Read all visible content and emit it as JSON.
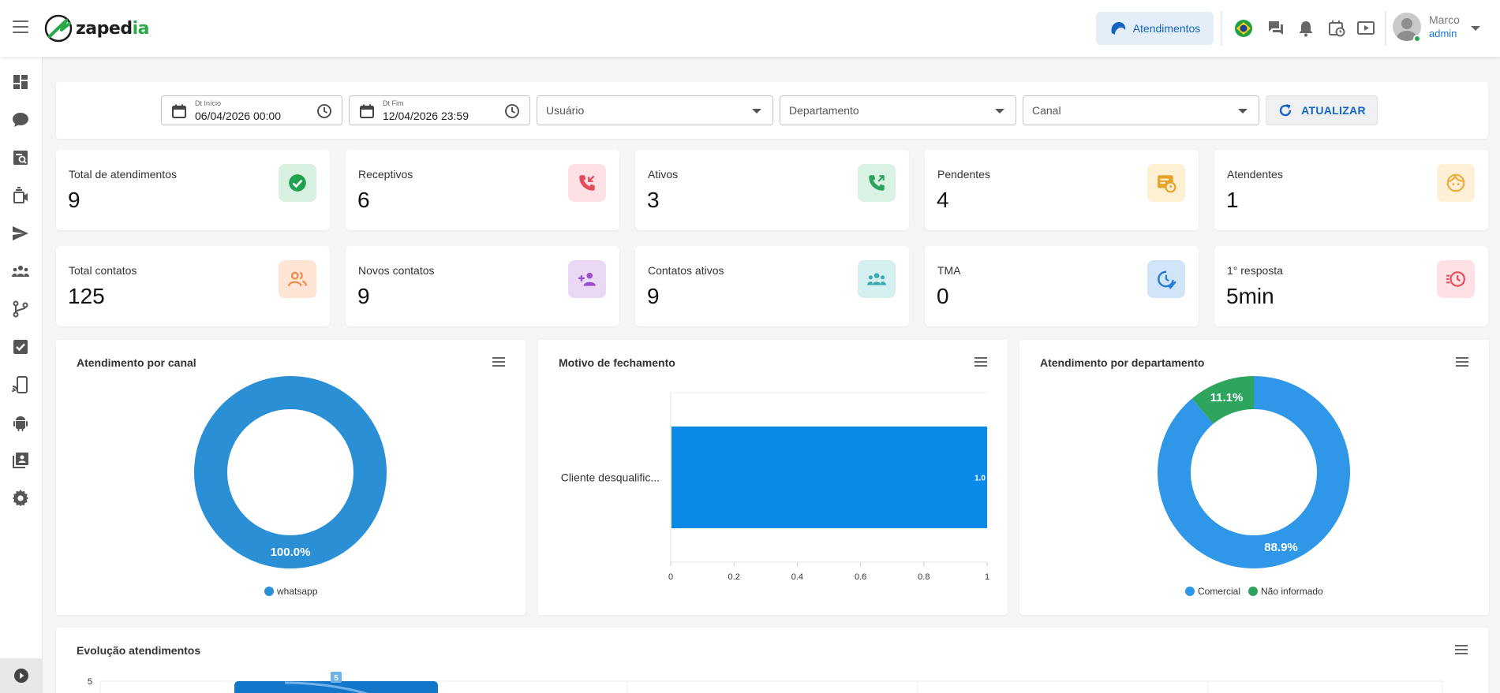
{
  "header": {
    "brand": {
      "prefix": "zaped",
      "suffix": "ia"
    },
    "atendimentos_label": "Atendimentos",
    "user": {
      "name": "Marco",
      "role": "admin"
    }
  },
  "filters": {
    "start": {
      "label": "Dt Início",
      "value": "06/04/2026 00:00"
    },
    "end": {
      "label": "Dt Fim",
      "value": "12/04/2026 23:59"
    },
    "usuario_placeholder": "Usuário",
    "departamento_placeholder": "Departamento",
    "canal_placeholder": "Canal",
    "refresh_label": "ATUALIZAR"
  },
  "stats": [
    {
      "title": "Total de atendimentos",
      "value": "9",
      "icon": "check-circle-icon",
      "bg": "#d7f0df",
      "fg": "#22a251"
    },
    {
      "title": "Receptivos",
      "value": "6",
      "icon": "phone-incoming-icon",
      "bg": "#fde1e4",
      "fg": "#e64b5c"
    },
    {
      "title": "Ativos",
      "value": "3",
      "icon": "phone-outgoing-icon",
      "bg": "#daf2e3",
      "fg": "#2ba35a"
    },
    {
      "title": "Pendentes",
      "value": "4",
      "icon": "pending-icon",
      "bg": "#fdf0d2",
      "fg": "#e6a32b"
    },
    {
      "title": "Atendentes",
      "value": "1",
      "icon": "face-icon",
      "bg": "#fdf0d6",
      "fg": "#ebac3e"
    },
    {
      "title": "Total contatos",
      "value": "125",
      "icon": "people-icon",
      "bg": "#fde4d4",
      "fg": "#f08a4b"
    },
    {
      "title": "Novos contatos",
      "value": "9",
      "icon": "add-people-icon",
      "bg": "#ead8f5",
      "fg": "#9a4fce"
    },
    {
      "title": "Contatos ativos",
      "value": "9",
      "icon": "group-icon",
      "bg": "#d5f0f0",
      "fg": "#3aa9b4"
    },
    {
      "title": "TMA",
      "value": "0",
      "icon": "clock-check-icon",
      "bg": "#d2e4f7",
      "fg": "#1e7bd8"
    },
    {
      "title": "1° resposta",
      "value": "5min",
      "icon": "timer-icon",
      "bg": "#fde1e4",
      "fg": "#e64b5c"
    }
  ],
  "charts": {
    "canal": {
      "title": "Atendimento por canal",
      "chart_data": {
        "type": "pie",
        "donut": true,
        "slices": [
          {
            "label": "whatsapp",
            "value": 100.0,
            "pct_label": "100.0%",
            "color": "#2b8fd6"
          }
        ],
        "legend": "bottom"
      }
    },
    "fechamento": {
      "title": "Motivo de fechamento",
      "chart_data": {
        "type": "bar",
        "orientation": "horizontal",
        "categories": [
          "Cliente desqualific..."
        ],
        "values": [
          1.0
        ],
        "value_labels": [
          "1.0"
        ],
        "xlim": [
          0,
          1
        ],
        "xticks": [
          "0",
          "0.2",
          "0.4",
          "0.6",
          "0.8",
          "1"
        ],
        "color": "#0a8ae8"
      }
    },
    "departamento": {
      "title": "Atendimento por departamento",
      "chart_data": {
        "type": "pie",
        "donut": true,
        "slices": [
          {
            "label": "Comercial",
            "value": 88.9,
            "pct_label": "88.9%",
            "color": "#2f97e8"
          },
          {
            "label": "Não informado",
            "value": 11.1,
            "pct_label": "11.1%",
            "color": "#2da55f"
          }
        ],
        "legend": "bottom"
      }
    },
    "evolucao": {
      "title": "Evolução atendimentos",
      "chart_data": {
        "type": "bar",
        "y_tick": "5",
        "value_label": "5",
        "color": "#1276c9"
      }
    }
  }
}
